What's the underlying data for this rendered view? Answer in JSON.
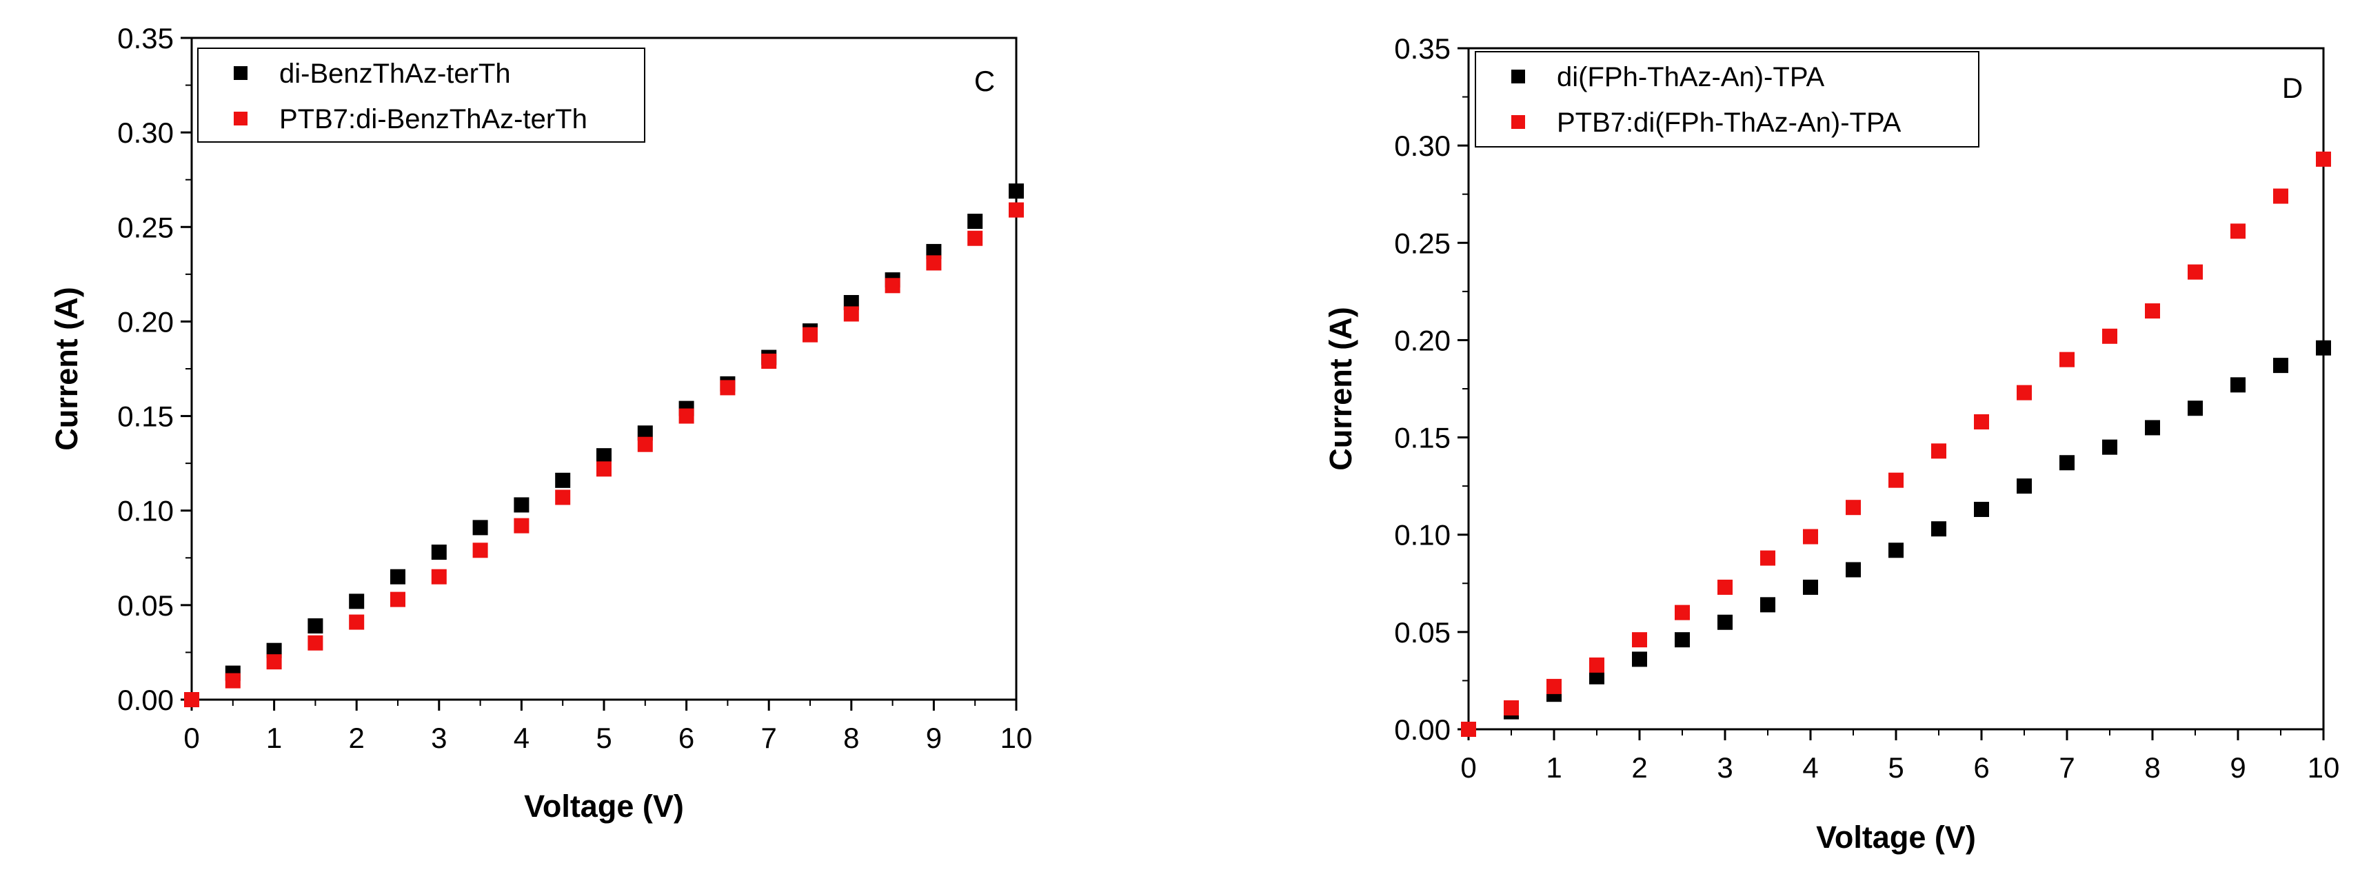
{
  "chart_data": [
    {
      "type": "scatter",
      "panel_label": "C",
      "xlabel": "Voltage (V)",
      "ylabel": "Current (A)",
      "xlim": [
        0,
        10
      ],
      "ylim": [
        0,
        0.35
      ],
      "x_ticks": [
        "0",
        "1",
        "2",
        "3",
        "4",
        "5",
        "6",
        "7",
        "8",
        "9",
        "10"
      ],
      "y_ticks": [
        "0.00",
        "0.05",
        "0.10",
        "0.15",
        "0.20",
        "0.25",
        "0.30",
        "0.35"
      ],
      "legend_position": "top-left",
      "series": [
        {
          "name": "di-BenzThAz-terTh",
          "color": "#000000",
          "x": [
            0.5,
            1,
            1.5,
            2,
            2.5,
            3,
            3.5,
            4,
            4.5,
            5,
            5.5,
            6,
            6.5,
            7,
            7.5,
            8,
            8.5,
            9,
            9.5,
            10
          ],
          "y": [
            0.014,
            0.026,
            0.039,
            0.052,
            0.065,
            0.078,
            0.091,
            0.103,
            0.116,
            0.129,
            0.141,
            0.154,
            0.167,
            0.181,
            0.195,
            0.21,
            0.222,
            0.237,
            0.253,
            0.269
          ]
        },
        {
          "name": "PTB7:di-BenzThAz-terTh",
          "color": "#ee1111",
          "x": [
            0,
            0.5,
            1,
            1.5,
            2,
            2.5,
            3,
            3.5,
            4,
            4.5,
            5,
            5.5,
            6,
            6.5,
            7,
            7.5,
            8,
            8.5,
            9,
            9.5,
            10
          ],
          "y": [
            0.0,
            0.01,
            0.02,
            0.03,
            0.041,
            0.053,
            0.065,
            0.079,
            0.092,
            0.107,
            0.122,
            0.135,
            0.15,
            0.165,
            0.179,
            0.193,
            0.204,
            0.219,
            0.231,
            0.244,
            0.259
          ]
        }
      ]
    },
    {
      "type": "scatter",
      "panel_label": "D",
      "xlabel": "Voltage (V)",
      "ylabel": "Current (A)",
      "xlim": [
        0,
        10
      ],
      "ylim": [
        0,
        0.35
      ],
      "x_ticks": [
        "0",
        "1",
        "2",
        "3",
        "4",
        "5",
        "6",
        "7",
        "8",
        "9",
        "10"
      ],
      "y_ticks": [
        "0.00",
        "0.05",
        "0.10",
        "0.15",
        "0.20",
        "0.25",
        "0.30",
        "0.35"
      ],
      "legend_position": "top-left",
      "series": [
        {
          "name": "di(FPh-ThAz-An)-TPA",
          "color": "#000000",
          "x": [
            0,
            0.5,
            1,
            1.5,
            2,
            2.5,
            3,
            3.5,
            4,
            4.5,
            5,
            5.5,
            6,
            6.5,
            7,
            7.5,
            8,
            8.5,
            9,
            9.5,
            10
          ],
          "y": [
            0.0,
            0.009,
            0.018,
            0.027,
            0.036,
            0.046,
            0.055,
            0.064,
            0.073,
            0.082,
            0.092,
            0.103,
            0.113,
            0.125,
            0.137,
            0.145,
            0.155,
            0.165,
            0.177,
            0.187,
            0.196
          ]
        },
        {
          "name": "PTB7:di(FPh-ThAz-An)-TPA",
          "color": "#ee1111",
          "x": [
            0,
            0.5,
            1,
            1.5,
            2,
            2.5,
            3,
            3.5,
            4,
            4.5,
            5,
            5.5,
            6,
            6.5,
            7,
            7.5,
            8,
            8.5,
            9,
            9.5,
            10
          ],
          "y": [
            0.0,
            0.011,
            0.022,
            0.033,
            0.046,
            0.06,
            0.073,
            0.088,
            0.099,
            0.114,
            0.128,
            0.143,
            0.158,
            0.173,
            0.19,
            0.202,
            0.215,
            0.235,
            0.256,
            0.274,
            0.293
          ]
        }
      ]
    }
  ]
}
